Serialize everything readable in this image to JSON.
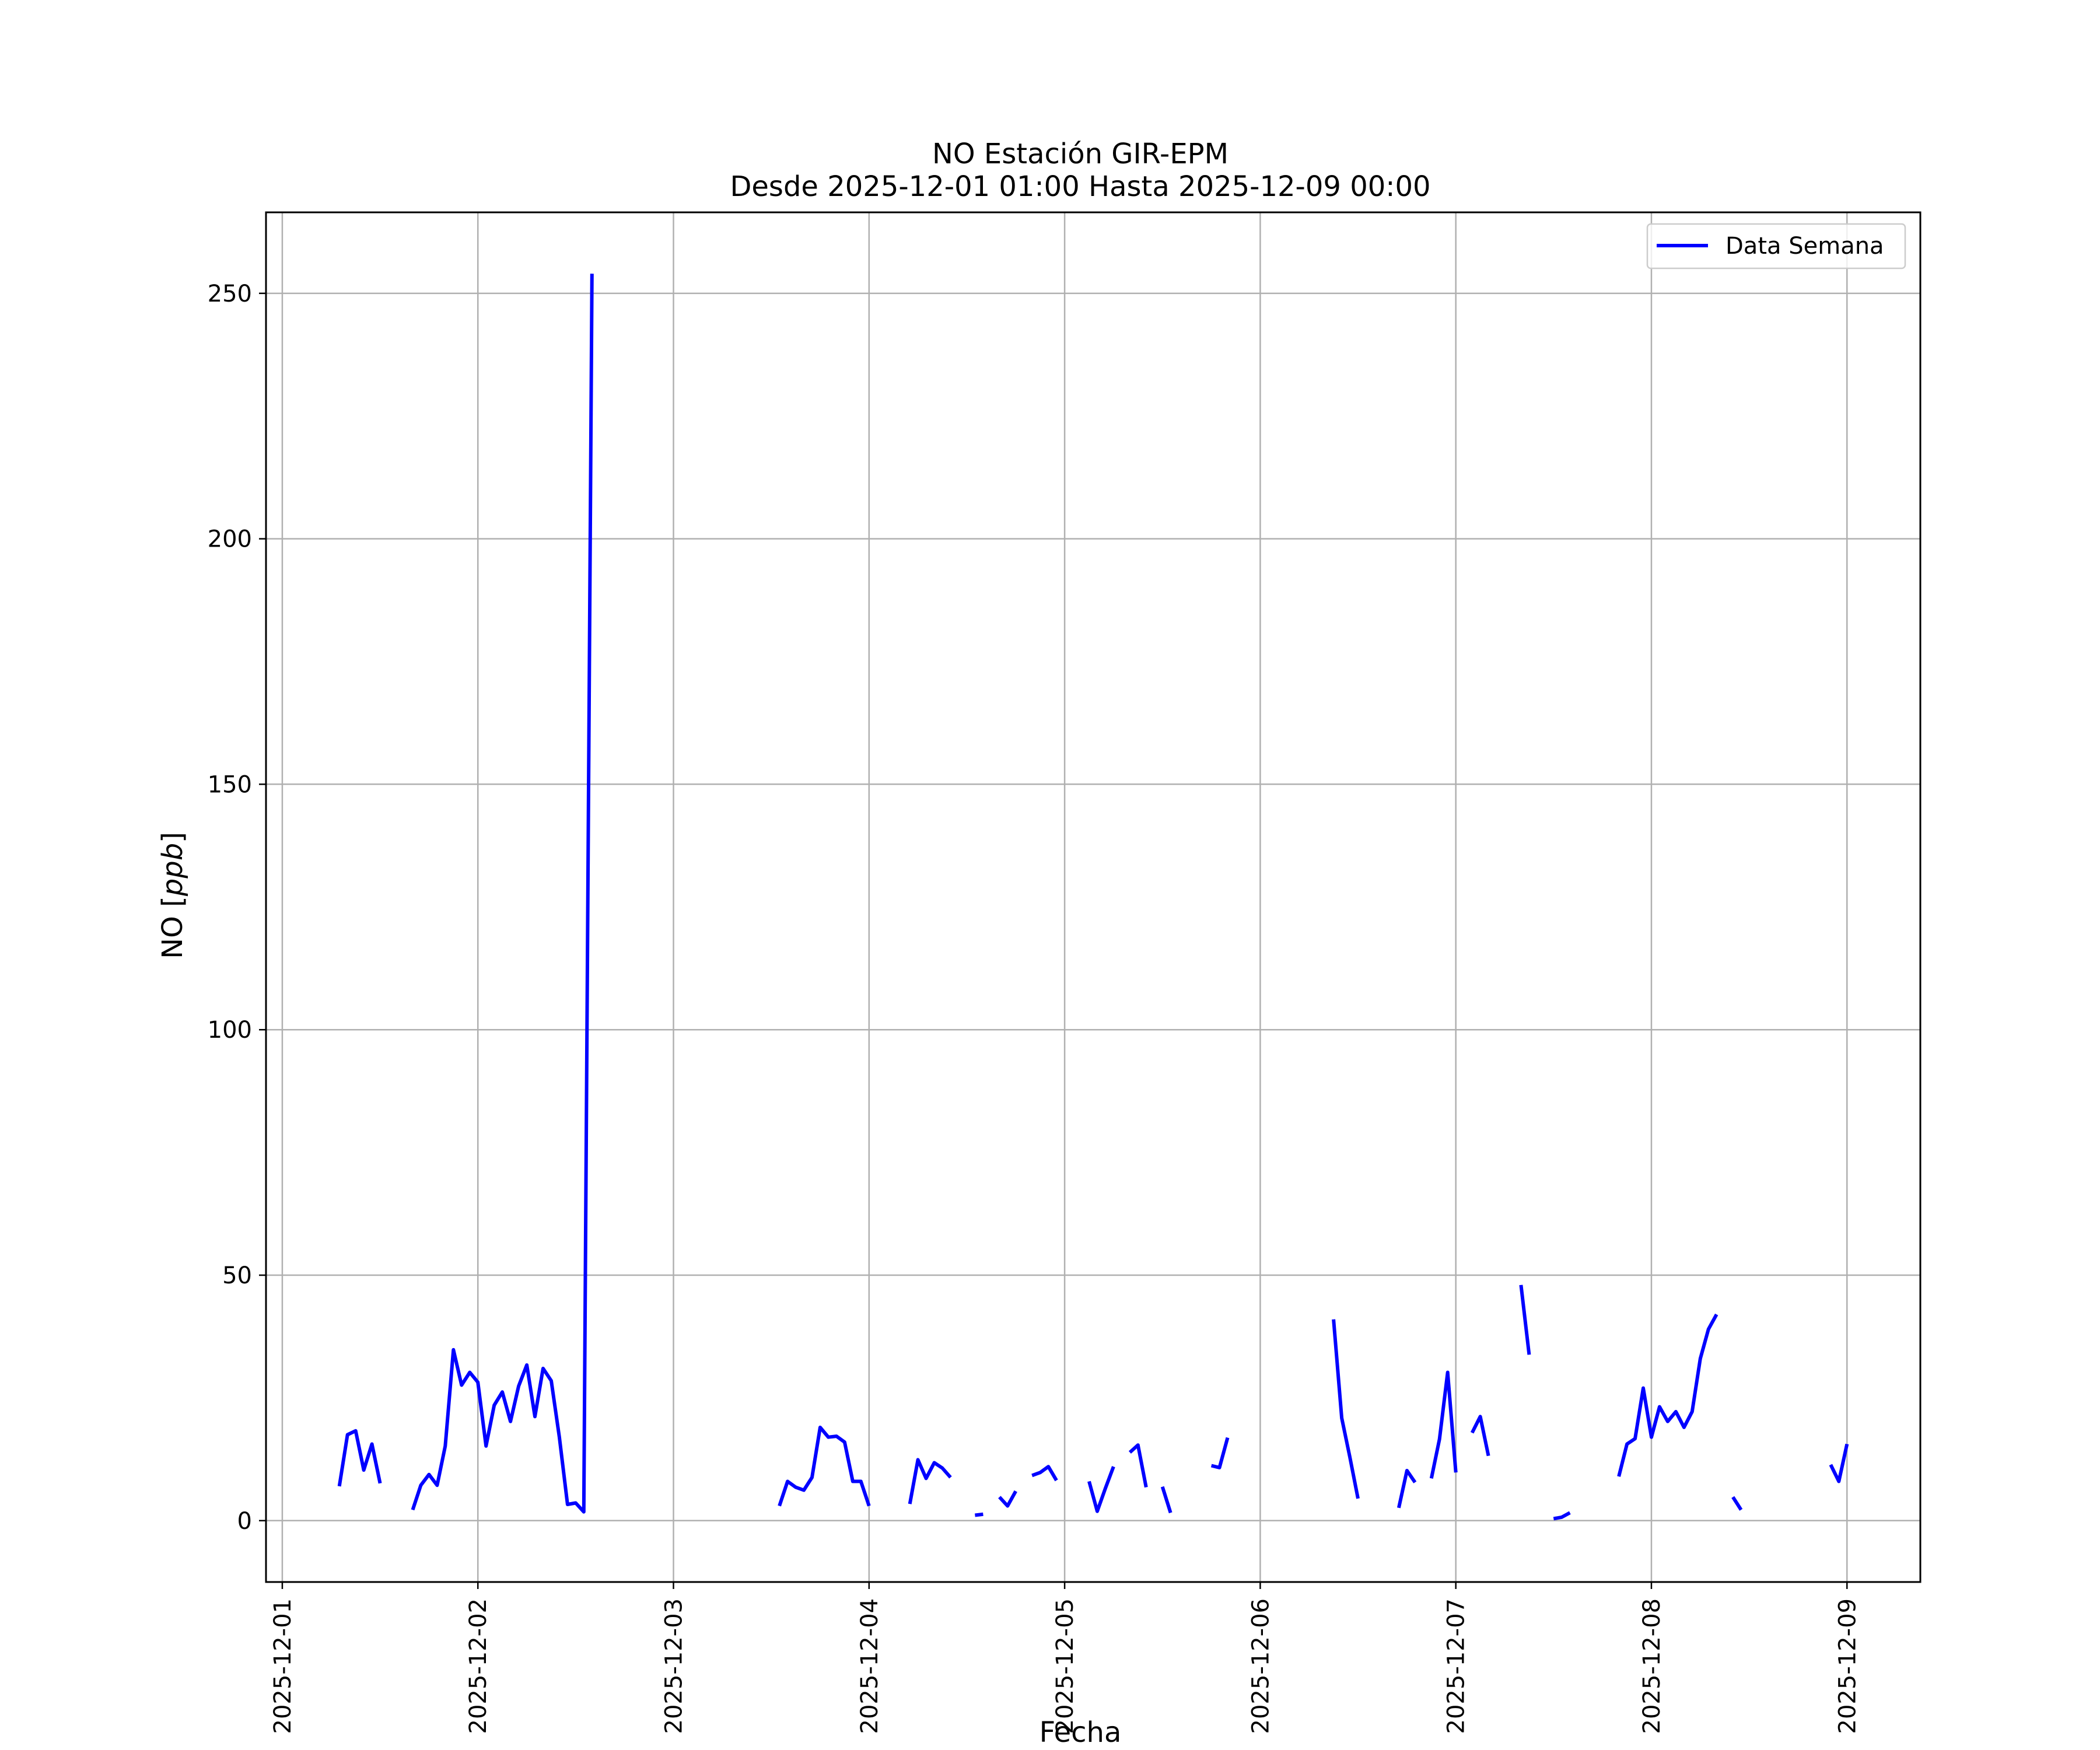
{
  "chart_data": {
    "type": "line",
    "title_line1": "NO Estación GIR-EPM",
    "title_line2": "Desde 2025-12-01 01:00 Hasta 2025-12-09 00:00",
    "xlabel": "Fecha",
    "ylabel_prefix": "NO [",
    "ylabel_unit": "ppb",
    "ylabel_suffix": "]",
    "xlim": [
      "2025-11-30 22:00",
      "2025-12-09 09:00"
    ],
    "ylim": [
      -12.5,
      266.5
    ],
    "x_ticks": [
      "2025-12-01",
      "2025-12-02",
      "2025-12-03",
      "2025-12-04",
      "2025-12-05",
      "2025-12-06",
      "2025-12-07",
      "2025-12-08",
      "2025-12-09"
    ],
    "y_ticks": [
      0,
      50,
      100,
      150,
      200,
      250
    ],
    "grid": true,
    "legend_position": "top-right",
    "series": [
      {
        "name": "Data Semana",
        "color": "#0000ff",
        "points": [
          [
            "2025-12-01 07:00",
            7.0
          ],
          [
            "2025-12-01 08:00",
            17.5
          ],
          [
            "2025-12-01 09:00",
            18.3
          ],
          [
            "2025-12-01 10:00",
            10.3
          ],
          [
            "2025-12-01 11:00",
            15.6
          ],
          [
            "2025-12-01 12:00",
            7.6
          ],
          [
            "2025-12-01 13:00",
            null
          ],
          [
            "2025-12-01 16:00",
            null
          ],
          [
            "2025-12-01 16:00",
            2.2
          ],
          [
            "2025-12-01 17:00",
            7.2
          ],
          [
            "2025-12-01 18:00",
            9.4
          ],
          [
            "2025-12-01 19:00",
            7.2
          ],
          [
            "2025-12-01 20:00",
            15.2
          ],
          [
            "2025-12-01 21:00",
            34.8
          ],
          [
            "2025-12-01 22:00",
            27.6
          ],
          [
            "2025-12-01 23:00",
            30.2
          ],
          [
            "2025-12-02 00:00",
            28.2
          ],
          [
            "2025-12-02 01:00",
            15.2
          ],
          [
            "2025-12-02 02:00",
            23.5
          ],
          [
            "2025-12-02 03:00",
            26.2
          ],
          [
            "2025-12-02 04:00",
            20.2
          ],
          [
            "2025-12-02 05:00",
            27.4
          ],
          [
            "2025-12-02 06:00",
            31.7
          ],
          [
            "2025-12-02 07:00",
            21.2
          ],
          [
            "2025-12-02 08:00",
            31.0
          ],
          [
            "2025-12-02 09:00",
            28.5
          ],
          [
            "2025-12-02 10:00",
            17.0
          ],
          [
            "2025-12-02 11:00",
            3.3
          ],
          [
            "2025-12-02 12:00",
            3.6
          ],
          [
            "2025-12-02 13:00",
            1.8
          ],
          [
            "2025-12-02 14:00",
            254.0
          ],
          [
            "2025-12-02 15:00",
            null
          ],
          [
            "2025-12-03 13:00",
            3.0
          ],
          [
            "2025-12-03 14:00",
            8.0
          ],
          [
            "2025-12-03 15:00",
            6.8
          ],
          [
            "2025-12-03 16:00",
            6.2
          ],
          [
            "2025-12-03 17:00",
            8.8
          ],
          [
            "2025-12-03 18:00",
            19.0
          ],
          [
            "2025-12-03 19:00",
            17.0
          ],
          [
            "2025-12-03 20:00",
            17.2
          ],
          [
            "2025-12-03 21:00",
            16.0
          ],
          [
            "2025-12-03 22:00",
            8.0
          ],
          [
            "2025-12-03 23:00",
            8.0
          ],
          [
            "2025-12-04 00:00",
            3.0
          ],
          [
            "2025-12-04 01:00",
            null
          ],
          [
            "2025-12-04 05:00",
            3.4
          ],
          [
            "2025-12-04 06:00",
            12.4
          ],
          [
            "2025-12-04 07:00",
            8.6
          ],
          [
            "2025-12-04 08:00",
            11.8
          ],
          [
            "2025-12-04 09:00",
            10.7
          ],
          [
            "2025-12-04 10:00",
            8.8
          ],
          [
            "2025-12-04 11:00",
            null
          ],
          [
            "2025-12-04 13:00",
            1.1
          ],
          [
            "2025-12-04 14:00",
            1.3
          ],
          [
            "2025-12-04 15:00",
            null
          ],
          [
            "2025-12-04 16:00",
            4.8
          ],
          [
            "2025-12-04 17:00",
            3.0
          ],
          [
            "2025-12-04 18:00",
            6.0
          ],
          [
            "2025-12-04 19:00",
            null
          ],
          [
            "2025-12-04 20:00",
            9.2
          ],
          [
            "2025-12-04 21:00",
            9.8
          ],
          [
            "2025-12-04 22:00",
            11.0
          ],
          [
            "2025-12-04 23:00",
            8.2
          ],
          [
            "2025-12-05 00:00",
            null
          ],
          [
            "2025-12-05 03:00",
            8.0
          ],
          [
            "2025-12-05 04:00",
            1.9
          ],
          [
            "2025-12-05 05:00",
            6.6
          ],
          [
            "2025-12-05 06:00",
            11.0
          ],
          [
            "2025-12-05 07:00",
            null
          ],
          [
            "2025-12-05 08:00",
            13.9
          ],
          [
            "2025-12-05 09:00",
            15.4
          ],
          [
            "2025-12-05 10:00",
            6.8
          ],
          [
            "2025-12-05 11:00",
            null
          ],
          [
            "2025-12-05 12:00",
            6.9
          ],
          [
            "2025-12-05 13:00",
            1.6
          ],
          [
            "2025-12-05 14:00",
            null
          ],
          [
            "2025-12-05 18:00",
            11.2
          ],
          [
            "2025-12-05 19:00",
            10.8
          ],
          [
            "2025-12-05 20:00",
            16.9
          ],
          [
            "2025-12-05 21:00",
            null
          ],
          [
            "2025-12-06 09:00",
            41.0
          ],
          [
            "2025-12-06 10:00",
            20.9
          ],
          [
            "2025-12-06 11:00",
            12.9
          ],
          [
            "2025-12-06 12:00",
            4.5
          ],
          [
            "2025-12-06 13:00",
            null
          ],
          [
            "2025-12-06 17:00",
            2.6
          ],
          [
            "2025-12-06 18:00",
            10.2
          ],
          [
            "2025-12-06 19:00",
            7.8
          ],
          [
            "2025-12-06 20:00",
            null
          ],
          [
            "2025-12-06 21:00",
            8.6
          ],
          [
            "2025-12-06 22:00",
            16.6
          ],
          [
            "2025-12-06 23:00",
            30.2
          ],
          [
            "2025-12-07 00:00",
            9.8
          ],
          [
            "2025-12-07 01:00",
            null
          ],
          [
            "2025-12-07 02:00",
            17.9
          ],
          [
            "2025-12-07 03:00",
            21.2
          ],
          [
            "2025-12-07 04:00",
            13.2
          ],
          [
            "2025-12-07 05:00",
            null
          ],
          [
            "2025-12-07 08:00",
            48.0
          ],
          [
            "2025-12-07 09:00",
            33.8
          ],
          [
            "2025-12-07 10:00",
            null
          ],
          [
            "2025-12-07 12:00",
            0.4
          ],
          [
            "2025-12-07 13:00",
            0.7
          ],
          [
            "2025-12-07 14:00",
            1.6
          ],
          [
            "2025-12-07 15:00",
            null
          ],
          [
            "2025-12-07 20:00",
            9.0
          ],
          [
            "2025-12-07 21:00",
            15.6
          ],
          [
            "2025-12-07 22:00",
            16.7
          ],
          [
            "2025-12-07 23:00",
            27.0
          ],
          [
            "2025-12-08 00:00",
            17.0
          ],
          [
            "2025-12-08 01:00",
            23.2
          ],
          [
            "2025-12-08 02:00",
            20.2
          ],
          [
            "2025-12-08 03:00",
            22.2
          ],
          [
            "2025-12-08 04:00",
            19.0
          ],
          [
            "2025-12-08 05:00",
            22.2
          ],
          [
            "2025-12-08 06:00",
            33.0
          ],
          [
            "2025-12-08 07:00",
            39.0
          ],
          [
            "2025-12-08 08:00",
            42.0
          ],
          [
            "2025-12-08 09:00",
            null
          ],
          [
            "2025-12-08 10:00",
            4.8
          ],
          [
            "2025-12-08 11:00",
            2.2
          ],
          [
            "2025-12-08 12:00",
            null
          ],
          [
            "2025-12-08 22:00",
            11.4
          ],
          [
            "2025-12-08 23:00",
            8.0
          ],
          [
            "2025-12-09 00:00",
            15.6
          ]
        ]
      }
    ]
  }
}
